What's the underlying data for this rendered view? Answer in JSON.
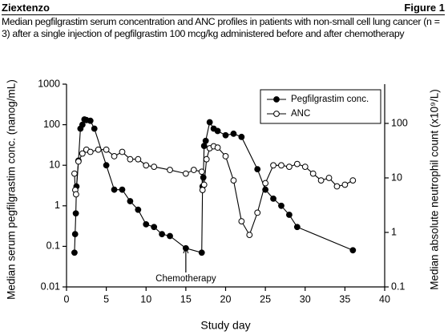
{
  "header": {
    "left": "Ziextenzo",
    "right": "Figure 1"
  },
  "chart_data": {
    "type": "line",
    "title": "Median pegfilgrastim serum concentration and ANC profiles in patients with non-small cell lung cancer (n = 3) after a single injection of pegfilgrastim 100 mcg/kg administered before and after chemotherapy",
    "x_label": "Study day",
    "y_label": "Median serum pegfilgrastim conc. (nanog/mL)",
    "y2_label": "Median absolute neutrophil count (x10⁹/L)",
    "xlim": [
      0,
      40
    ],
    "xticks": [
      0,
      5,
      10,
      15,
      20,
      25,
      30,
      35,
      40
    ],
    "ylim": [
      0.01,
      1000
    ],
    "yticks": [
      0.01,
      0.1,
      1,
      10,
      100,
      1000
    ],
    "y_scale": "log",
    "y2lim": [
      0.1,
      525
    ],
    "y2ticks": [
      0.1,
      1,
      10,
      100
    ],
    "y2_scale": "log",
    "legend": "upper right",
    "annotations": [
      {
        "text": "Chemotherapy",
        "x": 15
      }
    ],
    "series": [
      {
        "name": "Pegfilgrastim conc.",
        "color": "#000000",
        "marker": "filled",
        "x": [
          1,
          1.08,
          1.17,
          1.25,
          1.5,
          1.75,
          2,
          2.25,
          2.5,
          3,
          3.5,
          5,
          6,
          7,
          8,
          9,
          10,
          11,
          12,
          13,
          15,
          17,
          17.1,
          17.2,
          17.3,
          17.5,
          18,
          18.5,
          19,
          20,
          21,
          22,
          24,
          25,
          26,
          27,
          28,
          29,
          36
        ],
        "values": [
          0.07,
          0.2,
          0.65,
          3,
          13,
          80,
          100,
          135,
          130,
          125,
          80,
          10,
          2.5,
          2.5,
          1.3,
          0.8,
          0.35,
          0.3,
          0.2,
          0.18,
          0.09,
          0.07,
          3,
          5,
          30,
          40,
          115,
          80,
          70,
          55,
          60,
          50,
          8,
          2.5,
          1.5,
          1,
          0.6,
          0.3,
          0.08
        ]
      },
      {
        "name": "ANC",
        "color": "#000000",
        "marker": "open",
        "axis": "y2",
        "x": [
          1,
          1.1,
          1.2,
          1.5,
          2,
          2.5,
          3,
          4,
          5,
          6,
          7,
          8,
          9,
          10,
          11,
          13,
          15,
          16,
          17,
          17.1,
          17.3,
          17.6,
          18,
          18.5,
          19,
          20,
          21,
          22,
          23,
          24,
          25,
          26,
          27,
          28,
          29,
          30,
          31,
          32,
          33,
          34,
          35,
          36
        ],
        "values": [
          12,
          6,
          5,
          20,
          28,
          33,
          30,
          33,
          33,
          25,
          30,
          22,
          22,
          17,
          16,
          14,
          12,
          14,
          13,
          6,
          7.5,
          22,
          35,
          38,
          36,
          25,
          9,
          1.6,
          0.9,
          2.3,
          8,
          17,
          17,
          16,
          18,
          16,
          12,
          9,
          10,
          7,
          7.5,
          9
        ]
      }
    ]
  }
}
